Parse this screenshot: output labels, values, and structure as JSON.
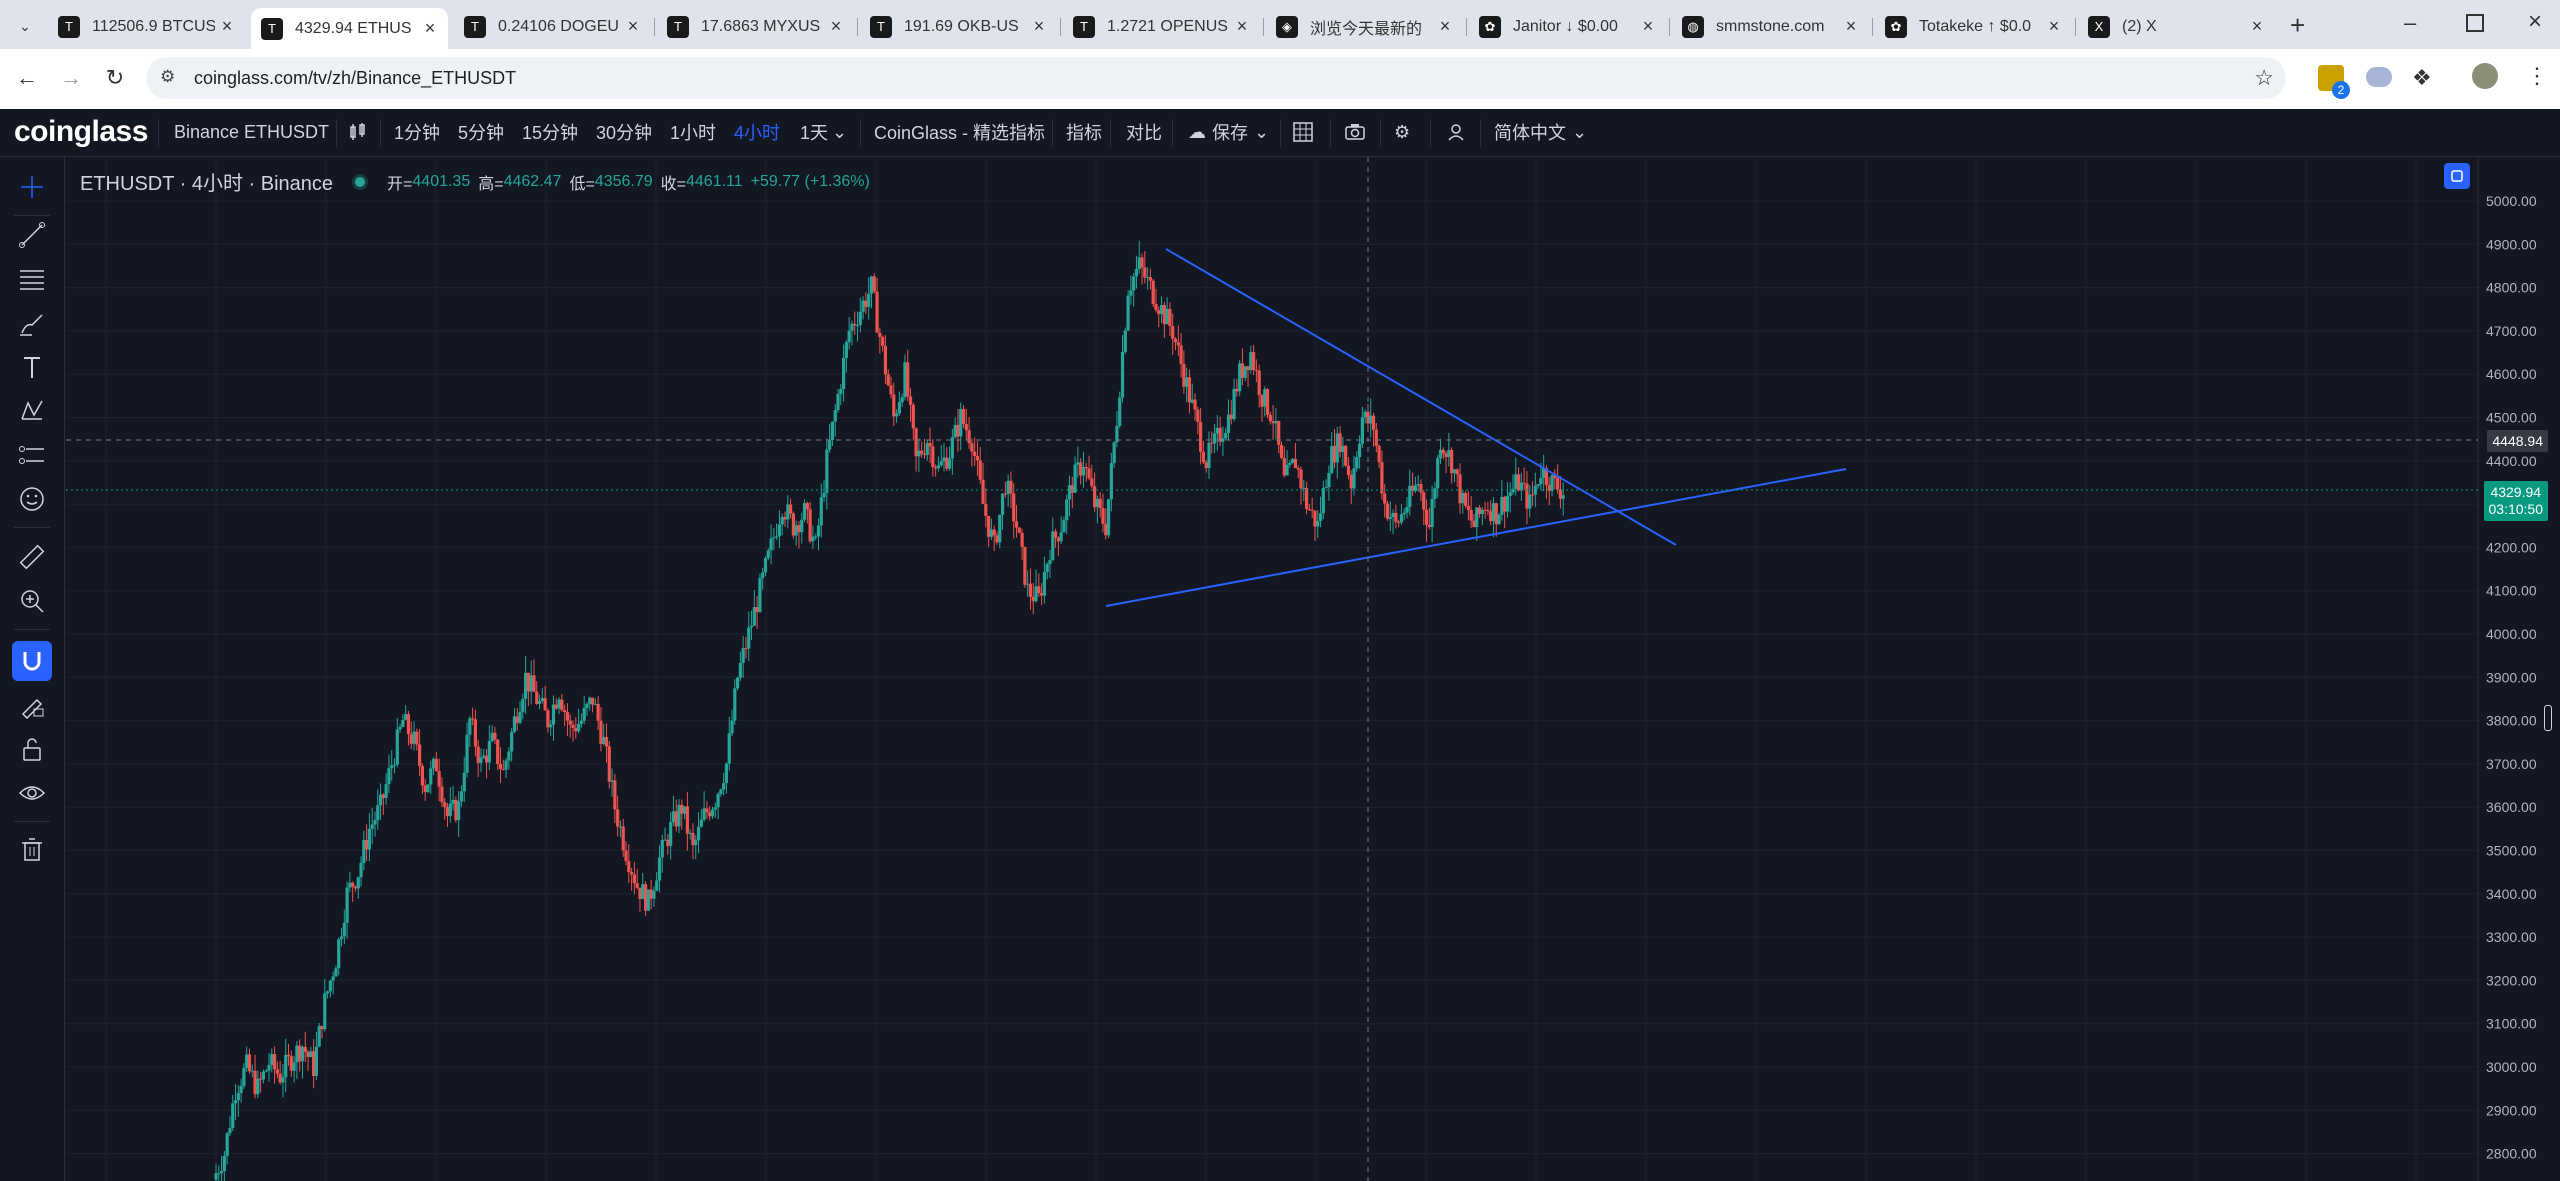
{
  "browser": {
    "tabs": [
      {
        "favicon": "T",
        "title": "112506.9 BTCUS",
        "active": false
      },
      {
        "favicon": "T",
        "title": "4329.94 ETHUS",
        "active": true
      },
      {
        "favicon": "T",
        "title": "0.24106 DOGEU",
        "active": false
      },
      {
        "favicon": "T",
        "title": "17.6863 MYXUS",
        "active": false
      },
      {
        "favicon": "T",
        "title": "191.69 OKB-US",
        "active": false
      },
      {
        "favicon": "T",
        "title": "1.2721 OPENUS",
        "active": false
      },
      {
        "favicon": "◈",
        "title": "浏览今天最新的",
        "active": false
      },
      {
        "favicon": "✿",
        "title": "Janitor ↓ $0.00",
        "active": false
      },
      {
        "favicon": "◍",
        "title": "smmstone.com",
        "active": false
      },
      {
        "favicon": "✿",
        "title": "Totakeke ↑ $0.0",
        "active": false
      },
      {
        "favicon": "X",
        "title": "(2) X",
        "active": false
      }
    ],
    "new_tab": "+",
    "url": "coinglass.com/tv/zh/Binance_ETHUSDT",
    "extension_badge": "2"
  },
  "header": {
    "logo": "coinglass",
    "symbol": "Binance ETHUSDT",
    "intervals": [
      "1分钟",
      "5分钟",
      "15分钟",
      "30分钟",
      "1小时",
      "4小时",
      "1天"
    ],
    "active_interval": "4小时",
    "indicators_brand": "CoinGlass - 精选指标",
    "indicators": "指标",
    "compare": "对比",
    "save": "保存",
    "language": "简体中文"
  },
  "legend": {
    "title": "ETHUSDT · 4小时 · Binance",
    "open_label": "开=",
    "open": "4401.35",
    "high_label": "高=",
    "high": "4462.47",
    "low_label": "低=",
    "low": "4356.79",
    "close_label": "收=",
    "close": "4461.11",
    "change": "+59.77 (+1.36%)"
  },
  "price_axis": {
    "ticks": [
      "5000.00",
      "4900.00",
      "4800.00",
      "4700.00",
      "4600.00",
      "4500.00",
      "4400.00",
      "4300.00",
      "4200.00",
      "4100.00",
      "4000.00",
      "3900.00",
      "3800.00",
      "3700.00",
      "3600.00",
      "3500.00",
      "3400.00",
      "3300.00",
      "3200.00",
      "3100.00",
      "3000.00",
      "2900.00",
      "2800.00"
    ],
    "crosshair_price": "4448.94",
    "last_price": "4329.94",
    "countdown": "03:10:50"
  },
  "colors": {
    "up": "#26a69a",
    "down": "#ef5350",
    "trendline": "#2962ff",
    "background": "#131722",
    "accent": "#2962ff"
  },
  "chart_data": {
    "type": "candlestick",
    "symbol": "ETHUSDT",
    "interval": "4小时",
    "ylim": [
      2750,
      5050
    ],
    "trendlines": [
      {
        "from": [
          0,
          4890
        ],
        "to": [
          1,
          4200
        ],
        "style": "descending resistance"
      },
      {
        "from": [
          0,
          4065
        ],
        "to": [
          1,
          4385
        ],
        "style": "ascending support"
      }
    ],
    "path": [
      2740,
      2800,
      2950,
      3000,
      2950,
      3010,
      2980,
      3020,
      3050,
      3000,
      3150,
      3250,
      3400,
      3450,
      3550,
      3600,
      3700,
      3800,
      3750,
      3650,
      3700,
      3580,
      3600,
      3800,
      3700,
      3750,
      3680,
      3800,
      3900,
      3850,
      3800,
      3870,
      3780,
      3800,
      3850,
      3750,
      3600,
      3500,
      3420,
      3380,
      3480,
      3550,
      3600,
      3500,
      3580,
      3620,
      3700,
      3900,
      4000,
      4100,
      4200,
      4300,
      4250,
      4280,
      4200,
      4400,
      4550,
      4700,
      4750,
      4800,
      4650,
      4500,
      4600,
      4400,
      4450,
      4380,
      4420,
      4500,
      4450,
      4300,
      4200,
      4350,
      4250,
      4100,
      4080,
      4200,
      4250,
      4350,
      4400,
      4300,
      4250,
      4500,
      4800,
      4850,
      4800,
      4750,
      4700,
      4600,
      4500,
      4400,
      4450,
      4500,
      4600,
      4650,
      4550,
      4500,
      4350,
      4400,
      4300,
      4250,
      4400,
      4450,
      4350,
      4500,
      4480,
      4300,
      4250,
      4300,
      4350,
      4250,
      4450,
      4400,
      4300,
      4250,
      4300,
      4280,
      4320,
      4350,
      4300,
      4380,
      4350,
      4330
    ],
    "path_note_units": "price USDT"
  }
}
